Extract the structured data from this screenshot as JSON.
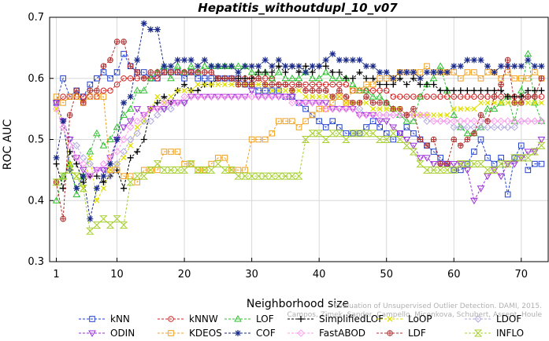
{
  "chart_data": {
    "type": "line",
    "title": "Hepatitis_withoutdupl_10_v07",
    "xlabel": "Neighborhood size",
    "ylabel": "ROC AUC",
    "xlim": [
      0,
      74
    ],
    "ylim": [
      0.3,
      0.7
    ],
    "xticks": [
      1,
      10,
      20,
      30,
      40,
      50,
      60,
      70
    ],
    "yticks": [
      0.3,
      0.4,
      0.5,
      0.6,
      0.7
    ],
    "x_start": 1,
    "x_step": 1,
    "legend_position": "bottom",
    "watermark": [
      "Evaluation of Unsupervised Outlier Detection. DAMI, 2015.",
      "Campos, Zimek, Sander, Campello, Micenkova, Schubert, Assent, Houle"
    ],
    "series": [
      {
        "name": "kNN",
        "color": "#1f3fcf",
        "marker": "square",
        "values": [
          0.56,
          0.6,
          0.57,
          0.58,
          0.57,
          0.59,
          0.6,
          0.61,
          0.6,
          0.61,
          0.64,
          0.62,
          0.61,
          0.61,
          0.6,
          0.6,
          0.61,
          0.61,
          0.61,
          0.6,
          0.61,
          0.6,
          0.6,
          0.6,
          0.6,
          0.6,
          0.6,
          0.6,
          0.59,
          0.59,
          0.58,
          0.58,
          0.58,
          0.58,
          0.57,
          0.57,
          0.56,
          0.55,
          0.54,
          0.53,
          0.52,
          0.53,
          0.52,
          0.51,
          0.51,
          0.51,
          0.52,
          0.53,
          0.52,
          0.51,
          0.5,
          0.51,
          0.52,
          0.51,
          0.5,
          0.49,
          0.48,
          0.47,
          0.46,
          0.45,
          0.45,
          0.46,
          0.48,
          0.5,
          0.47,
          0.46,
          0.47,
          0.41,
          0.47,
          0.49,
          0.45,
          0.46,
          0.46
        ]
      },
      {
        "name": "kNNW",
        "color": "#d22020",
        "marker": "circle",
        "values": [
          0.56,
          0.57,
          0.57,
          0.57,
          0.57,
          0.57,
          0.57,
          0.58,
          0.58,
          0.59,
          0.6,
          0.6,
          0.6,
          0.6,
          0.6,
          0.6,
          0.61,
          0.61,
          0.61,
          0.61,
          0.61,
          0.61,
          0.61,
          0.61,
          0.6,
          0.6,
          0.6,
          0.6,
          0.6,
          0.6,
          0.6,
          0.6,
          0.6,
          0.59,
          0.59,
          0.59,
          0.59,
          0.59,
          0.59,
          0.59,
          0.59,
          0.59,
          0.59,
          0.59,
          0.58,
          0.58,
          0.58,
          0.58,
          0.58,
          0.58,
          0.57,
          0.57,
          0.57,
          0.57,
          0.57,
          0.57,
          0.57,
          0.57,
          0.57,
          0.57,
          0.57,
          0.57,
          0.57,
          0.57,
          0.57,
          0.57,
          0.57,
          0.57,
          0.57,
          0.57,
          0.57,
          0.57,
          0.57
        ]
      },
      {
        "name": "LOF",
        "color": "#2fbf2f",
        "marker": "triangle",
        "values": [
          0.4,
          0.44,
          0.46,
          0.41,
          0.44,
          0.48,
          0.51,
          0.49,
          0.5,
          0.52,
          0.54,
          0.55,
          0.58,
          0.58,
          0.6,
          0.61,
          0.62,
          0.6,
          0.62,
          0.61,
          0.62,
          0.61,
          0.62,
          0.62,
          0.62,
          0.62,
          0.62,
          0.62,
          0.62,
          0.61,
          0.61,
          0.61,
          0.6,
          0.61,
          0.6,
          0.6,
          0.6,
          0.61,
          0.6,
          0.6,
          0.61,
          0.6,
          0.6,
          0.6,
          0.59,
          0.58,
          0.58,
          0.57,
          0.57,
          0.56,
          0.55,
          0.54,
          0.53,
          0.53,
          0.57,
          0.59,
          0.6,
          0.62,
          0.58,
          0.54,
          0.52,
          0.51,
          0.51,
          0.52,
          0.55,
          0.55,
          0.56,
          0.57,
          0.53,
          0.58,
          0.64,
          0.56,
          0.53
        ]
      },
      {
        "name": "SimplifiedLOF",
        "color": "#000000",
        "marker": "plus",
        "values": [
          0.46,
          0.42,
          0.48,
          0.46,
          0.43,
          0.44,
          0.44,
          0.43,
          0.44,
          0.45,
          0.42,
          0.47,
          0.48,
          0.5,
          0.55,
          0.56,
          0.57,
          0.56,
          0.58,
          0.59,
          0.58,
          0.58,
          0.59,
          0.59,
          0.6,
          0.6,
          0.6,
          0.6,
          0.6,
          0.6,
          0.61,
          0.61,
          0.61,
          0.62,
          0.61,
          0.62,
          0.61,
          0.62,
          0.61,
          0.62,
          0.62,
          0.61,
          0.61,
          0.6,
          0.6,
          0.61,
          0.6,
          0.6,
          0.59,
          0.59,
          0.59,
          0.6,
          0.59,
          0.6,
          0.59,
          0.59,
          0.59,
          0.58,
          0.58,
          0.58,
          0.58,
          0.58,
          0.58,
          0.58,
          0.58,
          0.58,
          0.58,
          0.57,
          0.57,
          0.57,
          0.58,
          0.58,
          0.58
        ]
      },
      {
        "name": "LoOP",
        "color": "#e0e000",
        "marker": "x",
        "values": [
          0.55,
          0.53,
          0.46,
          0.44,
          0.42,
          0.47,
          0.4,
          0.42,
          0.45,
          0.46,
          0.47,
          0.49,
          0.52,
          0.53,
          0.55,
          0.57,
          0.56,
          0.57,
          0.58,
          0.58,
          0.58,
          0.59,
          0.59,
          0.59,
          0.59,
          0.59,
          0.59,
          0.59,
          0.59,
          0.59,
          0.59,
          0.59,
          0.58,
          0.58,
          0.58,
          0.58,
          0.58,
          0.57,
          0.57,
          0.57,
          0.57,
          0.57,
          0.57,
          0.56,
          0.56,
          0.56,
          0.56,
          0.55,
          0.55,
          0.55,
          0.55,
          0.55,
          0.54,
          0.54,
          0.54,
          0.54,
          0.54,
          0.54,
          0.54,
          0.55,
          0.55,
          0.55,
          0.55,
          0.56,
          0.56,
          0.56,
          0.56,
          0.56,
          0.56,
          0.56,
          0.56,
          0.56,
          0.56
        ]
      },
      {
        "name": "LDOF",
        "color": "#b0a8e0",
        "marker": "diamond",
        "values": [
          0.56,
          0.53,
          0.5,
          0.49,
          0.47,
          0.46,
          0.45,
          0.45,
          0.44,
          0.46,
          0.48,
          0.5,
          0.51,
          0.53,
          0.53,
          0.54,
          0.55,
          0.55,
          0.56,
          0.56,
          0.57,
          0.57,
          0.57,
          0.57,
          0.57,
          0.57,
          0.57,
          0.57,
          0.57,
          0.57,
          0.57,
          0.57,
          0.57,
          0.57,
          0.57,
          0.57,
          0.56,
          0.56,
          0.56,
          0.56,
          0.55,
          0.55,
          0.55,
          0.55,
          0.55,
          0.55,
          0.54,
          0.54,
          0.54,
          0.54,
          0.54,
          0.54,
          0.54,
          0.54,
          0.54,
          0.53,
          0.53,
          0.53,
          0.53,
          0.52,
          0.52,
          0.52,
          0.52,
          0.52,
          0.52,
          0.52,
          0.52,
          0.52,
          0.52,
          0.53,
          0.53,
          0.53,
          0.53
        ]
      },
      {
        "name": "ODIN",
        "color": "#9b30d8",
        "marker": "triangle-down",
        "values": [
          0.56,
          0.53,
          0.5,
          0.47,
          0.45,
          0.44,
          0.45,
          0.45,
          0.47,
          0.5,
          0.52,
          0.53,
          0.55,
          0.54,
          0.55,
          0.55,
          0.55,
          0.56,
          0.56,
          0.56,
          0.57,
          0.57,
          0.57,
          0.57,
          0.57,
          0.57,
          0.57,
          0.57,
          0.57,
          0.58,
          0.57,
          0.57,
          0.57,
          0.57,
          0.57,
          0.57,
          0.56,
          0.56,
          0.56,
          0.56,
          0.56,
          0.55,
          0.55,
          0.55,
          0.55,
          0.54,
          0.54,
          0.54,
          0.53,
          0.53,
          0.52,
          0.51,
          0.5,
          0.49,
          0.47,
          0.47,
          0.46,
          0.46,
          0.46,
          0.46,
          0.46,
          0.45,
          0.4,
          0.42,
          0.44,
          0.45,
          0.44,
          0.46,
          0.46,
          0.47,
          0.48,
          0.48,
          0.5
        ]
      },
      {
        "name": "KDEOS",
        "color": "#f0a020",
        "marker": "square",
        "values": [
          0.57,
          0.56,
          0.57,
          0.57,
          0.56,
          0.57,
          0.57,
          0.57,
          0.45,
          0.45,
          0.44,
          0.44,
          0.43,
          0.45,
          0.45,
          0.45,
          0.48,
          0.48,
          0.48,
          0.46,
          0.46,
          0.45,
          0.45,
          0.46,
          0.47,
          0.47,
          0.45,
          0.45,
          0.45,
          0.5,
          0.5,
          0.5,
          0.51,
          0.53,
          0.53,
          0.53,
          0.52,
          0.53,
          0.54,
          0.55,
          0.55,
          0.56,
          0.57,
          0.56,
          0.58,
          0.58,
          0.59,
          0.59,
          0.6,
          0.6,
          0.6,
          0.61,
          0.61,
          0.61,
          0.61,
          0.62,
          0.61,
          0.61,
          0.61,
          0.61,
          0.6,
          0.61,
          0.61,
          0.6,
          0.61,
          0.61,
          0.6,
          0.61,
          0.6,
          0.6,
          0.6,
          0.61,
          0.6
        ]
      },
      {
        "name": "COF",
        "color": "#1a2a8a",
        "marker": "star",
        "values": [
          0.47,
          0.53,
          0.45,
          0.42,
          0.44,
          0.37,
          0.42,
          0.44,
          0.46,
          0.5,
          0.56,
          0.57,
          0.63,
          0.69,
          0.68,
          0.68,
          0.62,
          0.62,
          0.63,
          0.63,
          0.63,
          0.62,
          0.63,
          0.62,
          0.62,
          0.62,
          0.62,
          0.61,
          0.62,
          0.62,
          0.62,
          0.63,
          0.62,
          0.63,
          0.62,
          0.62,
          0.62,
          0.61,
          0.62,
          0.62,
          0.63,
          0.64,
          0.63,
          0.63,
          0.63,
          0.63,
          0.62,
          0.62,
          0.61,
          0.61,
          0.6,
          0.61,
          0.61,
          0.61,
          0.6,
          0.61,
          0.61,
          0.61,
          0.61,
          0.62,
          0.62,
          0.63,
          0.63,
          0.63,
          0.62,
          0.61,
          0.62,
          0.62,
          0.62,
          0.62,
          0.63,
          0.62,
          0.62
        ]
      },
      {
        "name": "FastABOD",
        "color": "#ff99ee",
        "marker": "diamond",
        "values": [
          0.55,
          0.52,
          0.49,
          0.47,
          0.46,
          0.44,
          0.45,
          0.46,
          0.47,
          0.48,
          0.5,
          0.52,
          0.53,
          0.54,
          0.55,
          0.55,
          0.56,
          0.56,
          0.56,
          0.57,
          0.57,
          0.57,
          0.57,
          0.57,
          0.57,
          0.57,
          0.57,
          0.57,
          0.57,
          0.57,
          0.57,
          0.57,
          0.57,
          0.57,
          0.57,
          0.56,
          0.56,
          0.56,
          0.56,
          0.56,
          0.55,
          0.55,
          0.55,
          0.55,
          0.55,
          0.54,
          0.54,
          0.54,
          0.54,
          0.54,
          0.54,
          0.54,
          0.54,
          0.54,
          0.54,
          0.54,
          0.53,
          0.53,
          0.53,
          0.53,
          0.53,
          0.53,
          0.53,
          0.53,
          0.53,
          0.53,
          0.53,
          0.53,
          0.53,
          0.53,
          0.53,
          0.53,
          0.53
        ]
      },
      {
        "name": "LDF",
        "color": "#b03030",
        "marker": "circle-plus",
        "values": [
          0.43,
          0.37,
          0.54,
          0.58,
          0.56,
          0.58,
          0.58,
          0.62,
          0.63,
          0.66,
          0.66,
          0.62,
          0.61,
          0.6,
          0.61,
          0.61,
          0.61,
          0.61,
          0.61,
          0.61,
          0.61,
          0.61,
          0.61,
          0.61,
          0.6,
          0.6,
          0.6,
          0.59,
          0.59,
          0.59,
          0.6,
          0.59,
          0.59,
          0.59,
          0.59,
          0.58,
          0.59,
          0.58,
          0.58,
          0.58,
          0.58,
          0.57,
          0.58,
          0.57,
          0.56,
          0.56,
          0.57,
          0.56,
          0.56,
          0.56,
          0.55,
          0.55,
          0.54,
          0.55,
          0.5,
          0.49,
          0.5,
          0.46,
          0.46,
          0.5,
          0.49,
          0.5,
          0.51,
          0.54,
          0.53,
          0.57,
          0.59,
          0.63,
          0.56,
          0.56,
          0.57,
          0.57,
          0.6
        ]
      },
      {
        "name": "INFLO",
        "color": "#a8d030",
        "marker": "hourglass",
        "values": [
          0.43,
          0.44,
          0.45,
          0.44,
          0.42,
          0.35,
          0.36,
          0.37,
          0.36,
          0.37,
          0.36,
          0.43,
          0.44,
          0.44,
          0.45,
          0.46,
          0.45,
          0.45,
          0.45,
          0.45,
          0.46,
          0.45,
          0.45,
          0.45,
          0.46,
          0.45,
          0.45,
          0.44,
          0.44,
          0.44,
          0.44,
          0.44,
          0.44,
          0.44,
          0.44,
          0.44,
          0.44,
          0.5,
          0.51,
          0.51,
          0.5,
          0.51,
          0.51,
          0.5,
          0.51,
          0.51,
          0.51,
          0.51,
          0.5,
          0.5,
          0.51,
          0.5,
          0.49,
          0.48,
          0.46,
          0.45,
          0.45,
          0.45,
          0.45,
          0.45,
          0.46,
          0.46,
          0.46,
          0.46,
          0.45,
          0.45,
          0.46,
          0.46,
          0.47,
          0.47,
          0.47,
          0.48,
          0.49
        ]
      }
    ]
  }
}
